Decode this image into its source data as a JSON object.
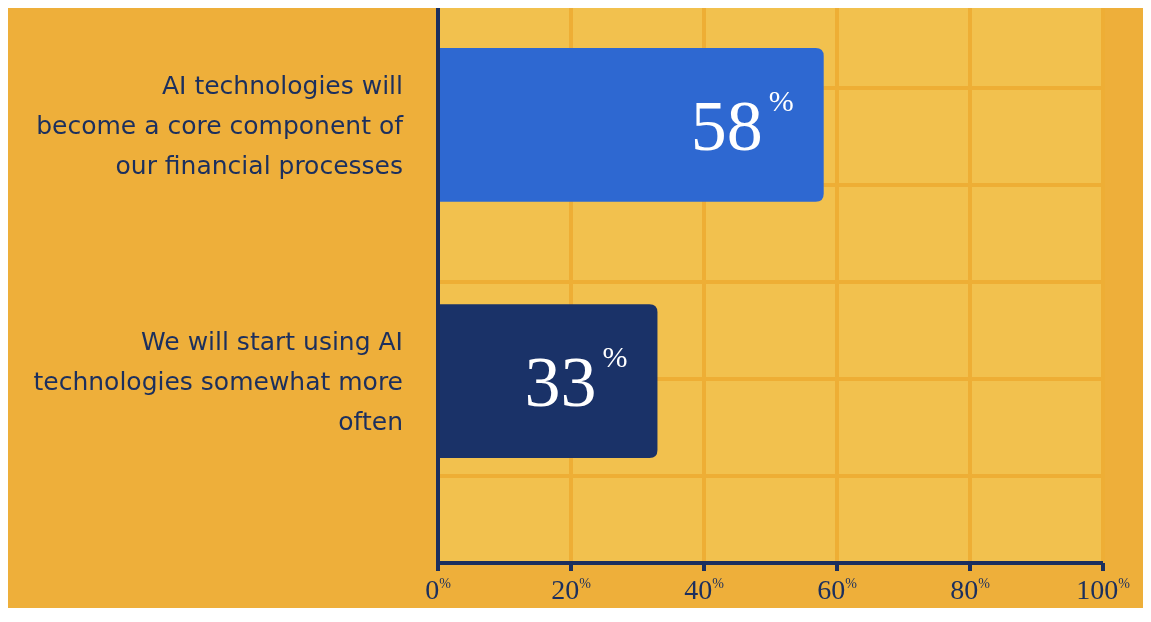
{
  "chart_data": {
    "type": "bar",
    "orientation": "horizontal",
    "categories": [
      "AI technologies will become a core component of our financial processes",
      "We will start using AI technologies somewhat more often"
    ],
    "values": [
      58,
      33
    ],
    "colors": [
      "#2e68d1",
      "#1a3268"
    ],
    "value_labels": [
      "58$^{%}$",
      "33$^{%}$"
    ],
    "xlim": [
      0,
      100
    ],
    "xticks": [
      {
        "value": 0,
        "label": "0$^{%}$"
      },
      {
        "value": 20,
        "label": "20$^{%}$"
      },
      {
        "value": 40,
        "label": "40$^{%}$"
      },
      {
        "value": 60,
        "label": "60$^{%}$"
      },
      {
        "value": 80,
        "label": "80$^{%}$"
      },
      {
        "value": 100,
        "label": "100$^{%}$"
      }
    ],
    "grid": true
  }
}
